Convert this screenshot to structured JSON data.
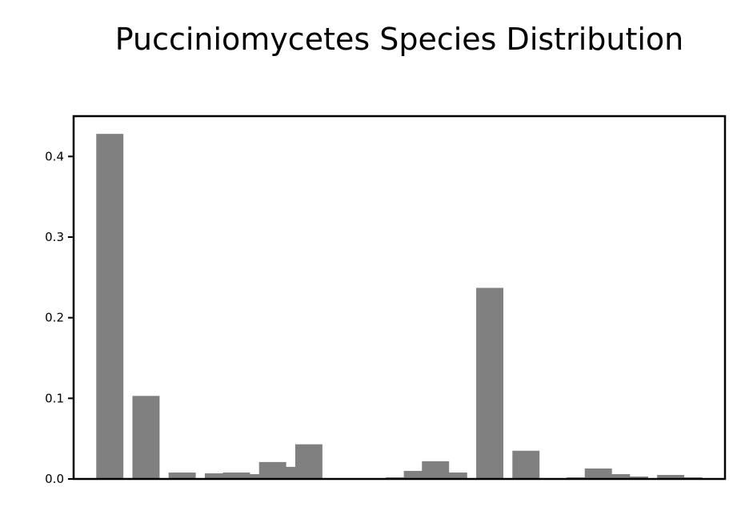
{
  "chart_data": {
    "type": "bar",
    "title": "Pucciniomycetes Species Distribution",
    "xlabel": "",
    "ylabel": "",
    "ylim": [
      0,
      0.45
    ],
    "yticks": [
      0.0,
      0.1,
      0.2,
      0.3,
      0.4
    ],
    "ytick_labels": [
      "0.0",
      "0.1",
      "0.2",
      "0.3",
      "0.4"
    ],
    "x_ticks_shown": false,
    "grid": false,
    "bar_color": "#808080",
    "bars": [
      {
        "x": 1.0,
        "value": 0.428
      },
      {
        "x": 2.0,
        "value": 0.103
      },
      {
        "x": 3.0,
        "value": 0.008
      },
      {
        "x": 4.0,
        "value": 0.007
      },
      {
        "x": 4.5,
        "value": 0.008
      },
      {
        "x": 5.0,
        "value": 0.006
      },
      {
        "x": 5.5,
        "value": 0.021
      },
      {
        "x": 6.0,
        "value": 0.015
      },
      {
        "x": 6.5,
        "value": 0.043
      },
      {
        "x": 9.0,
        "value": 0.002
      },
      {
        "x": 9.5,
        "value": 0.01
      },
      {
        "x": 10.0,
        "value": 0.022
      },
      {
        "x": 10.5,
        "value": 0.008
      },
      {
        "x": 11.5,
        "value": 0.237
      },
      {
        "x": 12.5,
        "value": 0.035
      },
      {
        "x": 14.0,
        "value": 0.002
      },
      {
        "x": 14.5,
        "value": 0.013
      },
      {
        "x": 15.0,
        "value": 0.006
      },
      {
        "x": 15.5,
        "value": 0.003
      },
      {
        "x": 16.0,
        "value": 0.001
      },
      {
        "x": 16.5,
        "value": 0.005
      },
      {
        "x": 17.0,
        "value": 0.002
      }
    ],
    "xlim": [
      0.0,
      18.0
    ],
    "bar_width": 0.75
  }
}
